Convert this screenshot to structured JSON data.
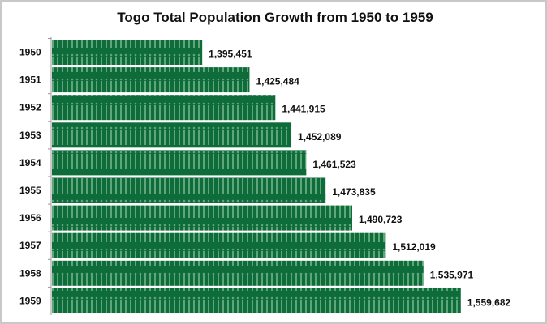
{
  "chart_data": {
    "type": "bar",
    "orientation": "horizontal",
    "title": "Togo Total Population Growth from 1950 to 1959",
    "categories": [
      "1950",
      "1951",
      "1952",
      "1953",
      "1954",
      "1955",
      "1956",
      "1957",
      "1958",
      "1959"
    ],
    "values": [
      1395451,
      1425484,
      1441915,
      1452089,
      1461523,
      1473835,
      1490723,
      1512019,
      1535971,
      1559682
    ],
    "data_labels": [
      "1,395,451",
      "1,425,484",
      "1,441,915",
      "1,452,089",
      "1,461,523",
      "1,473,835",
      "1,490,723",
      "1,512,019",
      "1,535,971",
      "1,559,682"
    ],
    "xlim": [
      1300000,
      1600000
    ],
    "grid": false,
    "legend": "none",
    "colors": {
      "bar": "#0e6b3a",
      "bar_pattern": "#5fa57a"
    }
  }
}
